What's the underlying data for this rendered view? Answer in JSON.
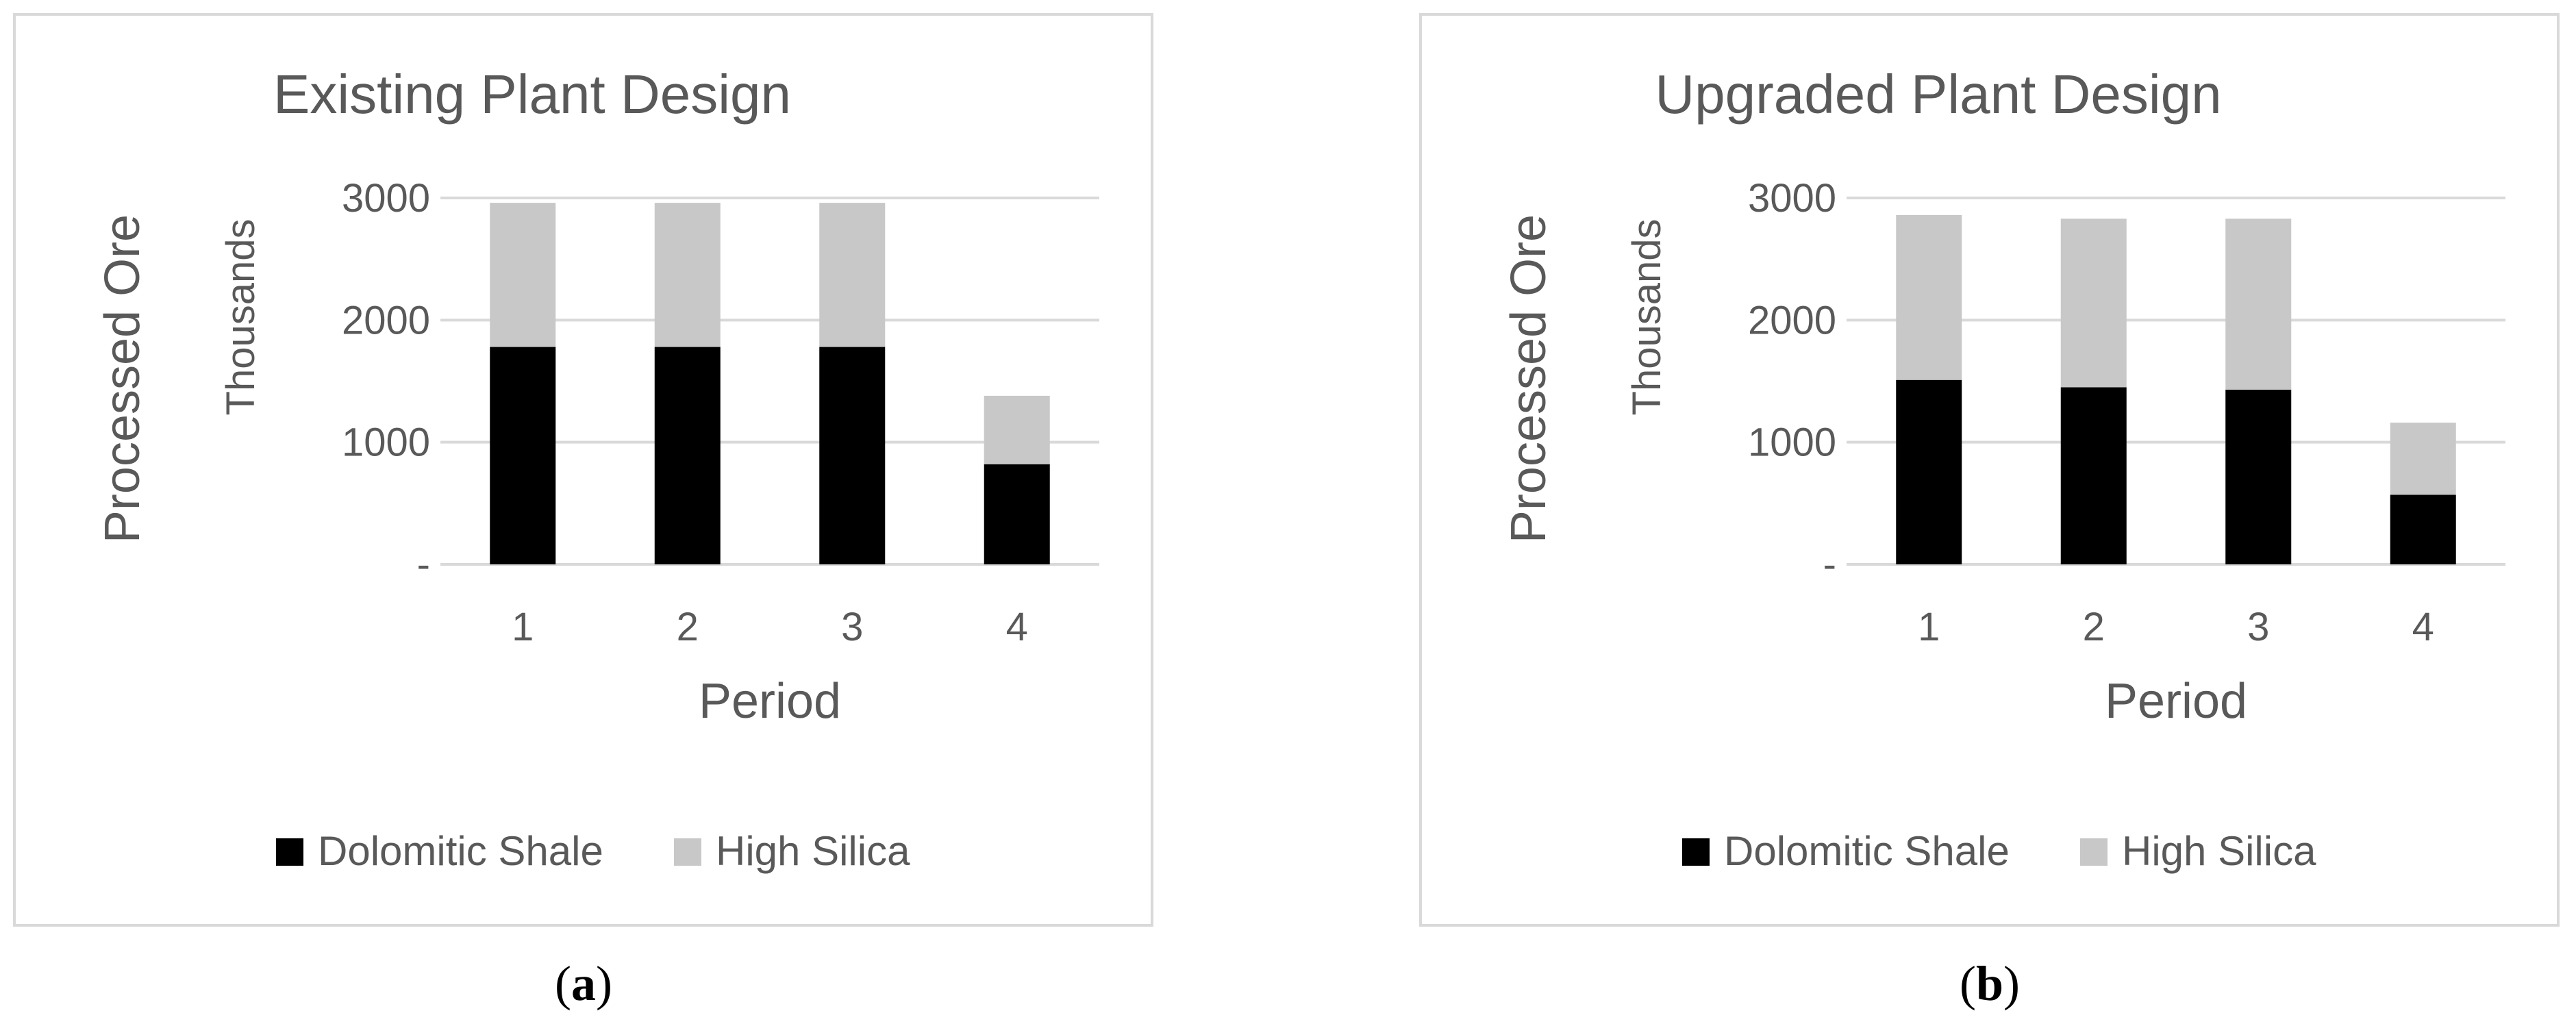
{
  "figure": {
    "captions": [
      {
        "open": "(",
        "letter": "a",
        "close": ")"
      },
      {
        "open": "(",
        "letter": "b",
        "close": ")"
      }
    ]
  },
  "colors": {
    "dolomitic_shale": "#000000",
    "high_silica": "#c8c8c8",
    "gridline": "#d9d9d9",
    "text": "#595959",
    "border": "#d9d9d9"
  },
  "chart_data": [
    {
      "type": "bar",
      "stacked": true,
      "title": "Existing Plant Design",
      "xlabel": "Period",
      "ylabel": "Processed Ore",
      "unit_label": "Thousands",
      "categories": [
        "1",
        "2",
        "3",
        "4"
      ],
      "y_ticks": [
        {
          "value": 0,
          "label": "-"
        },
        {
          "value": 1000,
          "label": "1000"
        },
        {
          "value": 2000,
          "label": "2000"
        },
        {
          "value": 3000,
          "label": "3000"
        }
      ],
      "ylim": [
        0,
        3000
      ],
      "grid": true,
      "legend_position": "bottom",
      "series": [
        {
          "name": "Dolomitic Shale",
          "color": "#000000",
          "values": [
            1780,
            1780,
            1780,
            820
          ]
        },
        {
          "name": "High Silica",
          "color": "#c8c8c8",
          "values": [
            1180,
            1180,
            1180,
            560
          ]
        }
      ]
    },
    {
      "type": "bar",
      "stacked": true,
      "title": "Upgraded Plant Design",
      "xlabel": "Period",
      "ylabel": "Processed Ore",
      "unit_label": "Thousands",
      "categories": [
        "1",
        "2",
        "3",
        "4"
      ],
      "y_ticks": [
        {
          "value": 0,
          "label": "-"
        },
        {
          "value": 1000,
          "label": "1000"
        },
        {
          "value": 2000,
          "label": "2000"
        },
        {
          "value": 3000,
          "label": "3000"
        }
      ],
      "ylim": [
        0,
        3000
      ],
      "grid": true,
      "legend_position": "bottom",
      "series": [
        {
          "name": "Dolomitic Shale",
          "color": "#000000",
          "values": [
            1510,
            1450,
            1430,
            570
          ]
        },
        {
          "name": "High Silica",
          "color": "#c8c8c8",
          "values": [
            1350,
            1380,
            1400,
            590
          ]
        }
      ]
    }
  ]
}
